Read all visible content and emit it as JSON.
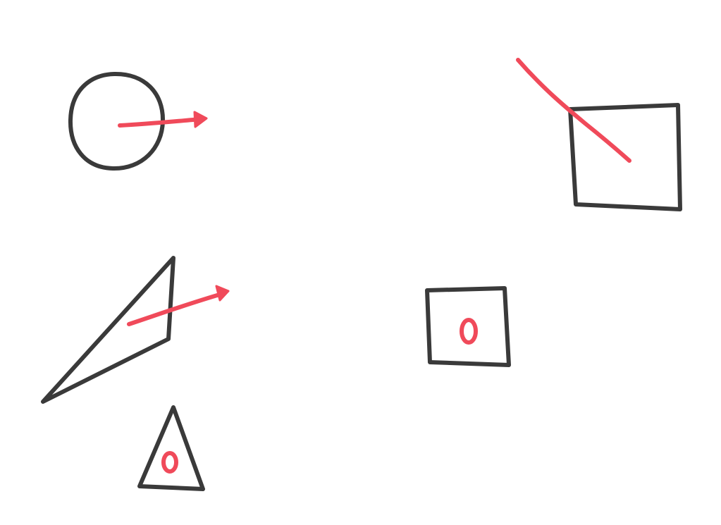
{
  "colors": {
    "background": "#ffffff",
    "shape_stroke": "#3a3a3a",
    "annotation": "#f04a5a"
  },
  "shapes": [
    {
      "name": "circle-with-arrow",
      "kind": "circle",
      "annotation": "arrow-right"
    },
    {
      "name": "square-crossed-by-line",
      "kind": "square",
      "annotation": "diagonal-line"
    },
    {
      "name": "long-triangle-with-arrow",
      "kind": "triangle",
      "annotation": "arrow-right"
    },
    {
      "name": "square-with-zero",
      "kind": "square",
      "annotation": "0"
    },
    {
      "name": "small-triangle-with-zero",
      "kind": "triangle",
      "annotation": "0"
    }
  ]
}
